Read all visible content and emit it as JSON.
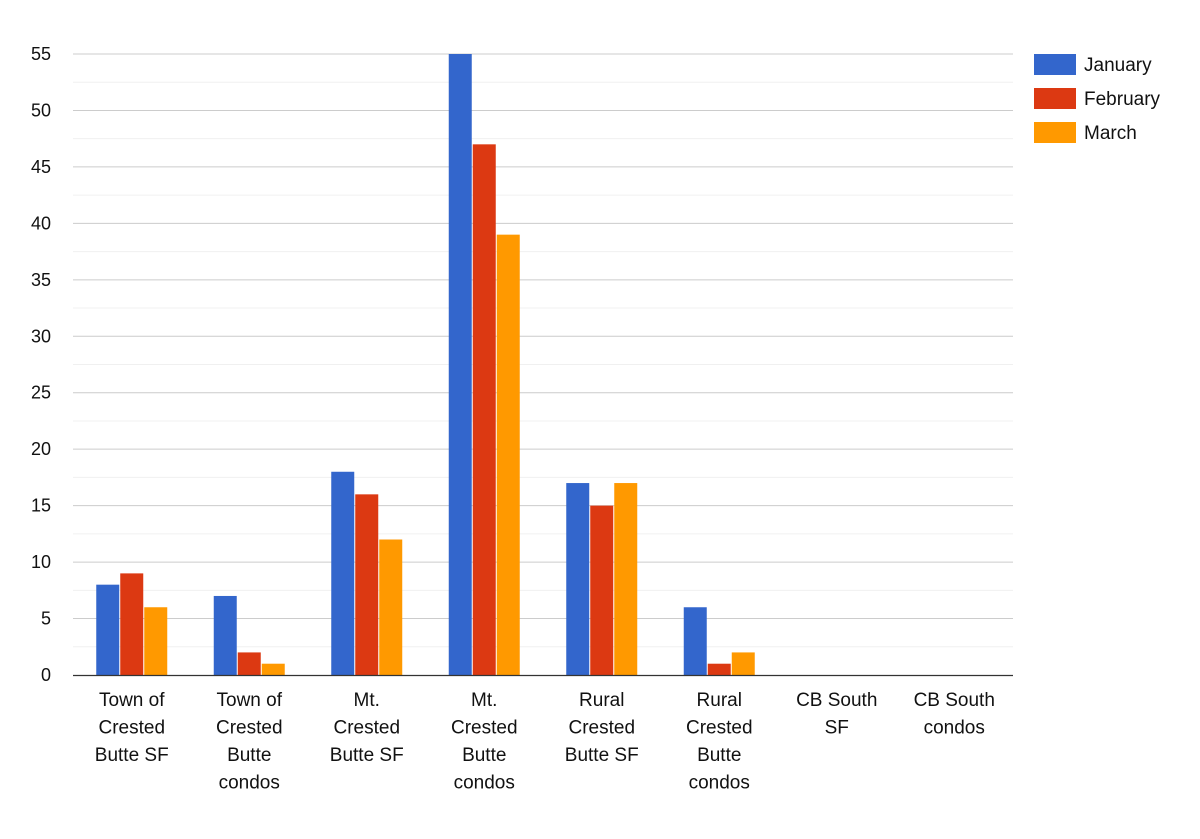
{
  "chart_data": {
    "type": "bar",
    "categories": [
      "Town of Crested Butte SF",
      "Town of Crested Butte condos",
      "Mt. Crested Butte SF",
      "Mt. Crested Butte condos",
      "Rural Crested Butte SF",
      "Rural Crested Butte condos",
      "CB South SF",
      "CB South condos"
    ],
    "category_label_lines": [
      [
        "Town of",
        "Crested",
        "Butte SF"
      ],
      [
        "Town of",
        "Crested",
        "Butte",
        "condos"
      ],
      [
        "Mt.",
        "Crested",
        "Butte SF"
      ],
      [
        "Mt.",
        "Crested",
        "Butte",
        "condos"
      ],
      [
        "Rural",
        "Crested",
        "Butte SF"
      ],
      [
        "Rural",
        "Crested",
        "Butte",
        "condos"
      ],
      [
        "CB South",
        "SF"
      ],
      [
        "CB South",
        "condos"
      ]
    ],
    "series": [
      {
        "name": "January",
        "color": "#3366cc",
        "values": [
          8,
          7,
          18,
          55,
          17,
          6,
          0,
          0
        ]
      },
      {
        "name": "February",
        "color": "#dc3912",
        "values": [
          9,
          2,
          16,
          47,
          15,
          1,
          0,
          0
        ]
      },
      {
        "name": "March",
        "color": "#ff9900",
        "values": [
          6,
          1,
          12,
          39,
          17,
          2,
          0,
          0
        ]
      }
    ],
    "ylim": [
      0,
      55
    ],
    "yticks": [
      0,
      5,
      10,
      15,
      20,
      25,
      30,
      35,
      40,
      45,
      50,
      55
    ],
    "grid": true,
    "legend_position": "top-right",
    "title": "",
    "xlabel": "",
    "ylabel": ""
  }
}
